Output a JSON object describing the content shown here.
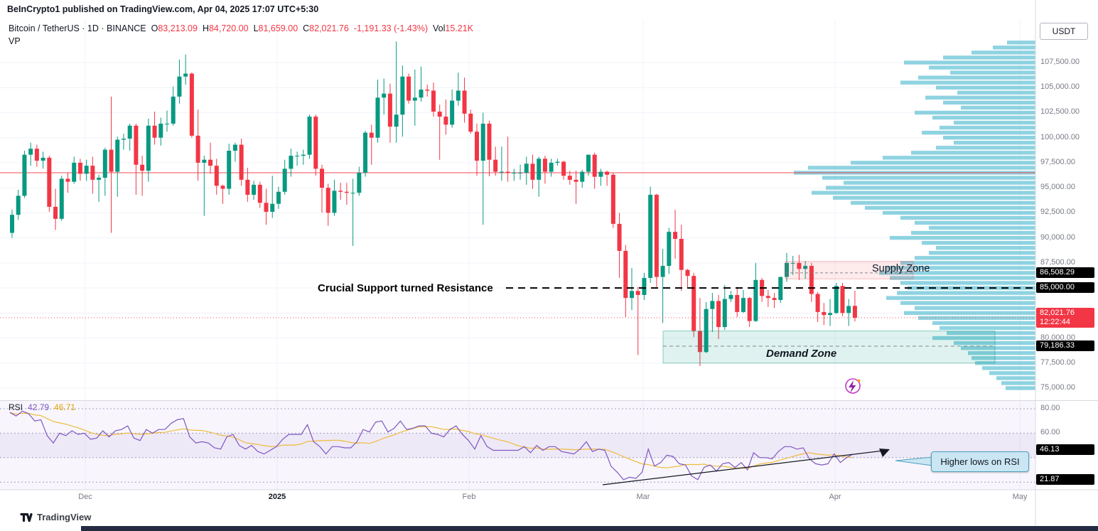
{
  "attribution": "BeInCrypto1 published on TradingView.com, Apr 04, 2025 17:07 UTC+5:30",
  "legend": {
    "title": "Bitcoin / TetherUS · 1D · BINANCE",
    "o_label": "O",
    "o": "83,213.09",
    "h_label": "H",
    "h": "84,720.00",
    "l_label": "L",
    "l": "81,659.00",
    "c_label": "C",
    "c": "82,021.76",
    "change": "-1,191.33 (-1.43%)",
    "vol_label": "Vol",
    "vol": "15.21K",
    "vp": "VP",
    "rsi_label": "RSI",
    "rsi_value": "42.79",
    "rsi_ma": "46.71"
  },
  "axis": {
    "currency_button": "USDT",
    "price_ticks": [
      {
        "label": "107,500.00",
        "price": 107500
      },
      {
        "label": "105,000.00",
        "price": 105000
      },
      {
        "label": "102,500.00",
        "price": 102500
      },
      {
        "label": "100,000.00",
        "price": 100000
      },
      {
        "label": "97,500.00",
        "price": 97500
      },
      {
        "label": "95,000.00",
        "price": 95000
      },
      {
        "label": "92,500.00",
        "price": 92500
      },
      {
        "label": "90,000.00",
        "price": 90000
      },
      {
        "label": "87,500.00",
        "price": 87500
      },
      {
        "label": "80,000.00",
        "price": 80000
      },
      {
        "label": "77,500.00",
        "price": 77500
      },
      {
        "label": "75,000.00",
        "price": 75000
      }
    ],
    "price_badges": [
      {
        "label": "86,508.29",
        "price": 86508.29,
        "color": "black"
      },
      {
        "label": "85,000.00",
        "price": 85000,
        "color": "black"
      },
      {
        "label": "82,021.76",
        "sub": "12:22:44",
        "price": 82021.76,
        "color": "red"
      },
      {
        "label": "79,186.33",
        "price": 79186.33,
        "color": "black"
      }
    ],
    "time_ticks": [
      {
        "label": "Dec"
      },
      {
        "label": "2025",
        "strong": true
      },
      {
        "label": "Feb"
      },
      {
        "label": "Mar"
      },
      {
        "label": "Apr"
      },
      {
        "label": "May"
      }
    ],
    "rsi_ticks": [
      {
        "label": "80.00",
        "value": 80
      },
      {
        "label": "60.00",
        "value": 60
      }
    ],
    "rsi_badges": [
      {
        "label": "46.13",
        "value": 46.13
      },
      {
        "label": "21.87",
        "value": 21.87
      }
    ]
  },
  "annotations": {
    "supply_zone": "Supply Zone",
    "resistance": "Crucial Support turned Resistance",
    "demand_zone": "Demand Zone",
    "rsi_note": "Higher lows on RSI"
  },
  "footer": {
    "logo_text": "TradingView"
  },
  "chart_data": {
    "type": "candlestick",
    "title": "Bitcoin / TetherUS · 1D · BINANCE",
    "x_axis_months": [
      "Dec",
      "2025",
      "Feb",
      "Mar",
      "Apr",
      "May"
    ],
    "y_axis_range": [
      75000,
      107500
    ],
    "price_line": 96500,
    "current_price": 82021.76,
    "countdown": "12:22:44",
    "levels": {
      "supply_zone": [
        85900,
        87650
      ],
      "supply_line": 86508.29,
      "resistance": 85000,
      "demand_zone": [
        77500,
        80700
      ],
      "demand_line": 79186.33
    },
    "candles": [
      [
        90500,
        92800,
        90000,
        92300
      ],
      [
        92300,
        94800,
        91800,
        94200
      ],
      [
        94200,
        98700,
        94000,
        98300
      ],
      [
        98300,
        99500,
        97200,
        98900
      ],
      [
        98900,
        99300,
        97100,
        97700
      ],
      [
        97700,
        98600,
        96900,
        98000
      ],
      [
        98000,
        98200,
        92600,
        93100
      ],
      [
        93100,
        94900,
        90800,
        91900
      ],
      [
        91900,
        96200,
        91700,
        95900
      ],
      [
        95900,
        96500,
        94500,
        95600
      ],
      [
        95600,
        98100,
        95400,
        97500
      ],
      [
        97500,
        97900,
        95700,
        96400
      ],
      [
        96400,
        97800,
        95700,
        97200
      ],
      [
        97200,
        98100,
        94400,
        95800
      ],
      [
        95800,
        96300,
        93600,
        96000
      ],
      [
        96000,
        99000,
        94200,
        98800
      ],
      [
        98800,
        104100,
        90500,
        96600
      ],
      [
        96600,
        100100,
        94100,
        99800
      ],
      [
        99800,
        100400,
        98800,
        99900
      ],
      [
        99900,
        101400,
        98700,
        101200
      ],
      [
        101200,
        101400,
        94300,
        97300
      ],
      [
        97300,
        98200,
        94200,
        96700
      ],
      [
        96700,
        101900,
        95600,
        101200
      ],
      [
        101200,
        102600,
        99300,
        100000
      ],
      [
        100000,
        102000,
        99200,
        101400
      ],
      [
        101400,
        102700,
        100600,
        101400
      ],
      [
        101400,
        105100,
        101200,
        104100
      ],
      [
        104100,
        107800,
        103400,
        106100
      ],
      [
        106100,
        108300,
        105300,
        106400
      ],
      [
        106400,
        106500,
        100000,
        100200
      ],
      [
        100200,
        102800,
        95700,
        97500
      ],
      [
        97500,
        98200,
        92200,
        97800
      ],
      [
        97800,
        99500,
        96400,
        97200
      ],
      [
        97200,
        97900,
        94300,
        95200
      ],
      [
        95200,
        95300,
        93400,
        94900
      ],
      [
        94900,
        99400,
        94300,
        98700
      ],
      [
        98700,
        99500,
        97600,
        99300
      ],
      [
        99300,
        99900,
        95200,
        95800
      ],
      [
        95800,
        97000,
        93600,
        94300
      ],
      [
        94300,
        95700,
        93800,
        95300
      ],
      [
        95300,
        95600,
        93000,
        93500
      ],
      [
        93500,
        94900,
        91300,
        92600
      ],
      [
        92600,
        96200,
        92000,
        93400
      ],
      [
        93400,
        95100,
        92900,
        94600
      ],
      [
        94600,
        97800,
        94300,
        96900
      ],
      [
        96900,
        98900,
        96100,
        98200
      ],
      [
        98200,
        98600,
        97200,
        98200
      ],
      [
        98200,
        98800,
        97300,
        98300
      ],
      [
        98300,
        102300,
        97900,
        102100
      ],
      [
        102100,
        102300,
        96200,
        96900
      ],
      [
        96900,
        97300,
        92500,
        95000
      ],
      [
        95000,
        95400,
        91200,
        92500
      ],
      [
        92500,
        95800,
        92200,
        94700
      ],
      [
        94700,
        95500,
        93800,
        94600
      ],
      [
        94600,
        95500,
        93300,
        94500
      ],
      [
        94500,
        95900,
        89200,
        94500
      ],
      [
        94500,
        97100,
        94200,
        96500
      ],
      [
        96500,
        100700,
        96100,
        100500
      ],
      [
        100500,
        101300,
        97300,
        100000
      ],
      [
        100000,
        105800,
        99500,
        104000
      ],
      [
        104000,
        105900,
        102300,
        104400
      ],
      [
        104400,
        105400,
        99500,
        101100
      ],
      [
        101100,
        109600,
        99500,
        102300
      ],
      [
        102300,
        107200,
        100100,
        106100
      ],
      [
        106100,
        106400,
        103400,
        103700
      ],
      [
        103700,
        106800,
        101200,
        104000
      ],
      [
        104000,
        107100,
        103600,
        104800
      ],
      [
        104800,
        105300,
        104100,
        104700
      ],
      [
        104700,
        105500,
        102100,
        102600
      ],
      [
        102600,
        103300,
        97800,
        102100
      ],
      [
        102100,
        103800,
        100300,
        101300
      ],
      [
        101300,
        104800,
        101000,
        103700
      ],
      [
        103700,
        106500,
        103200,
        104700
      ],
      [
        104700,
        106000,
        101500,
        102400
      ],
      [
        102400,
        102800,
        100400,
        100600
      ],
      [
        100600,
        101400,
        96200,
        97700
      ],
      [
        97700,
        102500,
        91300,
        101400
      ],
      [
        101400,
        101700,
        96150,
        97800
      ],
      [
        97800,
        99100,
        96200,
        96600
      ],
      [
        96600,
        99100,
        95700,
        96600
      ],
      [
        96600,
        100100,
        95600,
        96500
      ],
      [
        96500,
        96900,
        95700,
        96500
      ],
      [
        96500,
        97300,
        95800,
        96500
      ],
      [
        96500,
        98100,
        95300,
        97400
      ],
      [
        97400,
        98300,
        94900,
        95800
      ],
      [
        95800,
        98100,
        94100,
        97900
      ],
      [
        97900,
        98200,
        95400,
        96600
      ],
      [
        96600,
        97900,
        96100,
        97500
      ],
      [
        97500,
        97900,
        97200,
        97600
      ],
      [
        97600,
        97700,
        95800,
        96200
      ],
      [
        96200,
        96700,
        95300,
        95800
      ],
      [
        95800,
        96700,
        93400,
        95600
      ],
      [
        95600,
        96800,
        95000,
        96600
      ],
      [
        96600,
        98300,
        96200,
        98300
      ],
      [
        98300,
        98500,
        94900,
        96100
      ],
      [
        96100,
        96900,
        95200,
        96600
      ],
      [
        96600,
        96700,
        95200,
        96300
      ],
      [
        96300,
        96500,
        91000,
        91400
      ],
      [
        91400,
        92500,
        86000,
        88700
      ],
      [
        88700,
        89300,
        82100,
        84000
      ],
      [
        84000,
        87000,
        82800,
        84700
      ],
      [
        84700,
        85100,
        78300,
        84300
      ],
      [
        84300,
        86500,
        83800,
        86000
      ],
      [
        86000,
        95100,
        85500,
        94300
      ],
      [
        94300,
        94400,
        85100,
        86100
      ],
      [
        86100,
        88900,
        81500,
        87200
      ],
      [
        87200,
        91000,
        86400,
        90600
      ],
      [
        90600,
        92800,
        87900,
        89900
      ],
      [
        89900,
        91300,
        84700,
        86800
      ],
      [
        86800,
        86900,
        85000,
        86200
      ],
      [
        86200,
        86500,
        80100,
        80700
      ],
      [
        80700,
        84000,
        77200,
        78600
      ],
      [
        78600,
        83600,
        78500,
        82900
      ],
      [
        82900,
        84500,
        80600,
        83700
      ],
      [
        83700,
        84300,
        79900,
        81100
      ],
      [
        81100,
        85300,
        80800,
        83900
      ],
      [
        83900,
        84700,
        83600,
        84300
      ],
      [
        84300,
        85100,
        82100,
        82600
      ],
      [
        82600,
        84800,
        82500,
        84000
      ],
      [
        84000,
        84100,
        81100,
        81700
      ],
      [
        81700,
        87500,
        81600,
        85800
      ],
      [
        85800,
        86000,
        83600,
        84200
      ],
      [
        84200,
        84800,
        83100,
        84000
      ],
      [
        84000,
        84500,
        83000,
        83800
      ],
      [
        83800,
        86100,
        83500,
        86100
      ],
      [
        86100,
        88500,
        85600,
        87500
      ],
      [
        87500,
        88200,
        86300,
        87500
      ],
      [
        87500,
        88300,
        85800,
        86900
      ],
      [
        86900,
        87700,
        85900,
        87200
      ],
      [
        87200,
        87500,
        83600,
        84400
      ],
      [
        84400,
        84600,
        81600,
        82600
      ],
      [
        82600,
        83500,
        81300,
        82300
      ],
      [
        82300,
        83900,
        81200,
        82500
      ],
      [
        82500,
        85500,
        82400,
        85200
      ],
      [
        85200,
        85500,
        82200,
        82500
      ],
      [
        82500,
        83900,
        81200,
        83200
      ],
      [
        83213,
        84720,
        81659,
        82022
      ]
    ],
    "volume_profile": [
      [
        109500,
        40
      ],
      [
        109000,
        60
      ],
      [
        108500,
        90
      ],
      [
        108000,
        130
      ],
      [
        107500,
        185
      ],
      [
        107000,
        150
      ],
      [
        106500,
        120
      ],
      [
        106000,
        165
      ],
      [
        105500,
        190
      ],
      [
        105000,
        140
      ],
      [
        104500,
        110
      ],
      [
        104000,
        155
      ],
      [
        103500,
        130
      ],
      [
        103000,
        105
      ],
      [
        102500,
        170
      ],
      [
        102000,
        145
      ],
      [
        101500,
        115
      ],
      [
        101000,
        135
      ],
      [
        100500,
        160
      ],
      [
        100000,
        130
      ],
      [
        99500,
        115
      ],
      [
        99000,
        140
      ],
      [
        98500,
        175
      ],
      [
        98000,
        215
      ],
      [
        97500,
        260
      ],
      [
        97000,
        320
      ],
      [
        96500,
        340
      ],
      [
        96000,
        300
      ],
      [
        95500,
        270
      ],
      [
        95000,
        295
      ],
      [
        94500,
        315
      ],
      [
        94000,
        285
      ],
      [
        93500,
        260
      ],
      [
        93000,
        240
      ],
      [
        92500,
        215
      ],
      [
        92000,
        190
      ],
      [
        91500,
        170
      ],
      [
        91000,
        150
      ],
      [
        90500,
        175
      ],
      [
        90000,
        205
      ],
      [
        89500,
        160
      ],
      [
        89000,
        140
      ],
      [
        88500,
        150
      ],
      [
        88000,
        170
      ],
      [
        87500,
        190
      ],
      [
        87000,
        210
      ],
      [
        86500,
        220
      ],
      [
        86000,
        205
      ],
      [
        85500,
        190
      ],
      [
        85000,
        180
      ],
      [
        84500,
        195
      ],
      [
        84000,
        210
      ],
      [
        83500,
        190
      ],
      [
        83000,
        170
      ],
      [
        82500,
        185
      ],
      [
        82000,
        165
      ],
      [
        81500,
        145
      ],
      [
        81000,
        135
      ],
      [
        80500,
        125
      ],
      [
        80000,
        145
      ],
      [
        79500,
        115
      ],
      [
        79000,
        105
      ],
      [
        78500,
        95
      ],
      [
        78000,
        90
      ],
      [
        77500,
        85
      ],
      [
        77000,
        75
      ],
      [
        76500,
        65
      ],
      [
        76000,
        55
      ],
      [
        75500,
        48
      ],
      [
        75000,
        42
      ]
    ],
    "rsi": {
      "bands": [
        80,
        60,
        40,
        20
      ],
      "last": 42.79,
      "ma_last": 46.71,
      "values": [
        77,
        74,
        78,
        76,
        70,
        71,
        58,
        52,
        60,
        58,
        62,
        59,
        60,
        55,
        56,
        62,
        57,
        62,
        63,
        66,
        56,
        54,
        63,
        60,
        63,
        63,
        68,
        71,
        72,
        57,
        52,
        53,
        52,
        48,
        47,
        57,
        59,
        50,
        47,
        50,
        45,
        43,
        46,
        49,
        55,
        59,
        59,
        59,
        67,
        53,
        49,
        43,
        49,
        49,
        48,
        48,
        53,
        63,
        61,
        69,
        70,
        61,
        64,
        70,
        63,
        64,
        66,
        66,
        60,
        59,
        57,
        63,
        66,
        59,
        54,
        47,
        58,
        49,
        46,
        46,
        46,
        46,
        46,
        49,
        44,
        50,
        46,
        49,
        49,
        45,
        44,
        43,
        47,
        53,
        45,
        47,
        46,
        33,
        28,
        22,
        24,
        23,
        28,
        47,
        33,
        36,
        42,
        41,
        35,
        34,
        25,
        22,
        32,
        34,
        29,
        35,
        36,
        32,
        36,
        30,
        44,
        40,
        40,
        39,
        45,
        49,
        49,
        47,
        48,
        39,
        35,
        34,
        35,
        43,
        36,
        40,
        42.79
      ]
    }
  }
}
